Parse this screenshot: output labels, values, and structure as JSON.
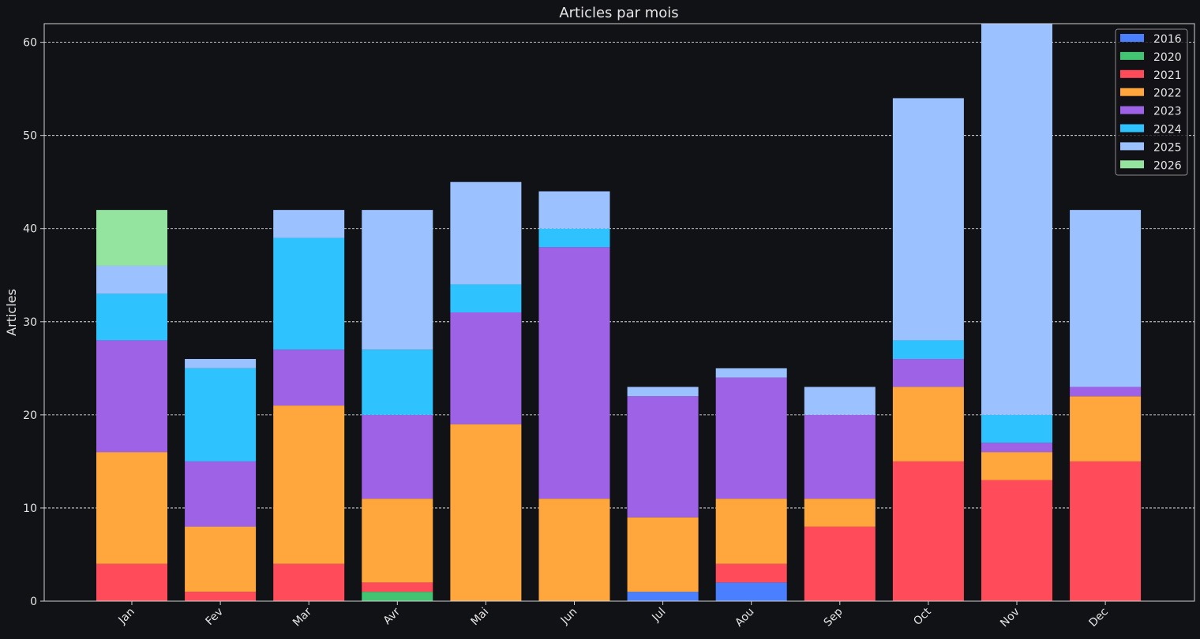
{
  "chart_data": {
    "type": "bar",
    "stacked": true,
    "title": "Articles par mois",
    "xlabel": "",
    "ylabel": "Articles",
    "ylim": [
      0,
      62
    ],
    "yticks": [
      0,
      10,
      20,
      30,
      40,
      50,
      60
    ],
    "grid": "horizontal dashed",
    "legend_position": "top-right",
    "categories": [
      "Jan",
      "Fev",
      "Mar",
      "Avr",
      "Mai",
      "Jun",
      "Jul",
      "Aou",
      "Sep",
      "Oct",
      "Nov",
      "Dec"
    ],
    "series": [
      {
        "name": "2016",
        "color": "#4a80ff",
        "values": [
          0,
          0,
          0,
          0,
          0,
          0,
          1,
          2,
          0,
          0,
          0,
          0
        ]
      },
      {
        "name": "2020",
        "color": "#42c472",
        "values": [
          0,
          0,
          0,
          1,
          0,
          0,
          0,
          0,
          0,
          0,
          0,
          0
        ]
      },
      {
        "name": "2021",
        "color": "#ff4b5a",
        "values": [
          4,
          1,
          4,
          1,
          0,
          0,
          0,
          2,
          8,
          15,
          13,
          15
        ]
      },
      {
        "name": "2022",
        "color": "#ffa73c",
        "values": [
          12,
          7,
          17,
          9,
          19,
          11,
          8,
          7,
          3,
          8,
          3,
          7
        ]
      },
      {
        "name": "2023",
        "color": "#9d62e6",
        "values": [
          12,
          7,
          6,
          9,
          12,
          27,
          13,
          13,
          9,
          3,
          1,
          1
        ]
      },
      {
        "name": "2024",
        "color": "#2ec3ff",
        "values": [
          5,
          10,
          12,
          7,
          3,
          2,
          0,
          0,
          0,
          2,
          3,
          0
        ]
      },
      {
        "name": "2025",
        "color": "#9bc1ff",
        "values": [
          3,
          1,
          3,
          15,
          11,
          4,
          1,
          1,
          3,
          26,
          42,
          19
        ]
      },
      {
        "name": "2026",
        "color": "#94e49f",
        "values": [
          6,
          0,
          0,
          0,
          0,
          0,
          0,
          0,
          0,
          0,
          0,
          0
        ]
      }
    ]
  }
}
